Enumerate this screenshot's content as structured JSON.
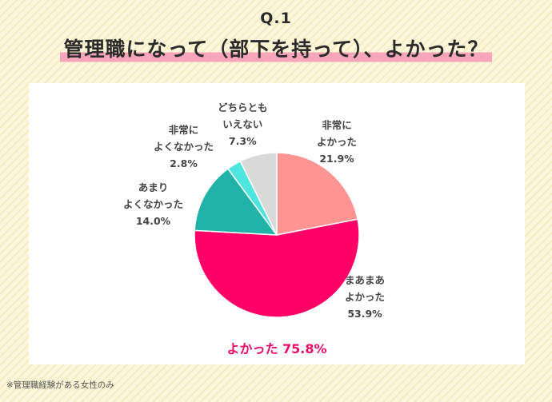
{
  "header": {
    "question": "Q.1",
    "title": "管理職になって（部下を持って）、よかった？"
  },
  "chart_data": {
    "type": "pie",
    "title": "管理職になって（部下を持って）、よかった？",
    "slices": [
      {
        "label_lines": [
          "非常に",
          "よかった"
        ],
        "value": 21.9,
        "value_text": "21.9%",
        "color": "#ff9493"
      },
      {
        "label_lines": [
          "まあまあ",
          "よかった"
        ],
        "value": 53.9,
        "value_text": "53.9%",
        "color": "#ff0066"
      },
      {
        "label_lines": [
          "あまり",
          "よくなかった"
        ],
        "value": 14.0,
        "value_text": "14.0%",
        "color": "#22b3a8"
      },
      {
        "label_lines": [
          "非常に",
          "よくなかった"
        ],
        "value": 2.8,
        "value_text": "2.8%",
        "color": "#4ee5df"
      },
      {
        "label_lines": [
          "どちらとも",
          "いえない"
        ],
        "value": 7.3,
        "value_text": "7.3%",
        "color": "#d9d9d9"
      }
    ],
    "summary": "よかった 75.8%"
  },
  "footnote": "※管理職経験がある女性のみ"
}
